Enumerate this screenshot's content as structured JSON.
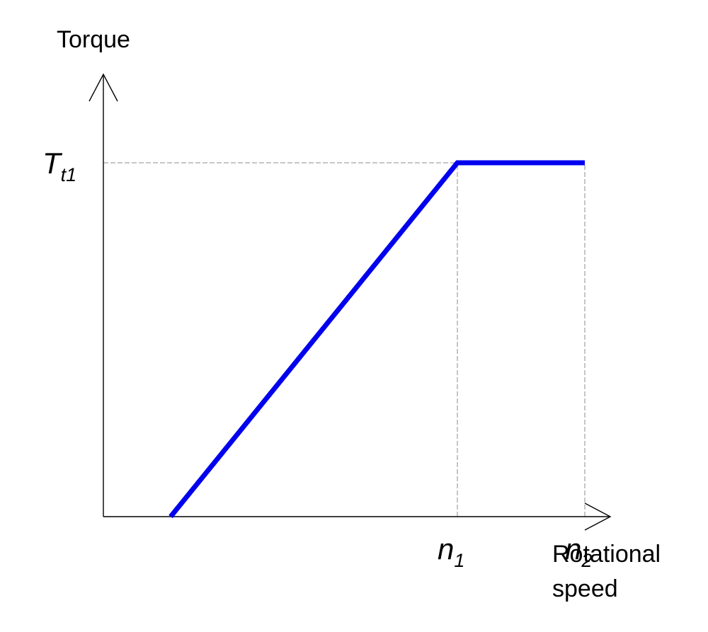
{
  "chart_data": {
    "type": "line",
    "ylabel": "Torque",
    "xlabel_lines": [
      "Rotational",
      "speed"
    ],
    "x_ticks": [
      {
        "base": "n",
        "sub": "1",
        "value": 500
      },
      {
        "base": "n",
        "sub": "2",
        "value": 680
      }
    ],
    "y_ticks": [
      {
        "base": "T",
        "sub": "t1",
        "value": 500
      }
    ],
    "xlim": [
      0,
      720
    ],
    "ylim": [
      0,
      640
    ],
    "series": [
      {
        "color": "#0000ee",
        "points": [
          {
            "x": 95,
            "y": 0
          },
          {
            "x": 500,
            "y": 500
          },
          {
            "x": 680,
            "y": 500
          }
        ]
      }
    ],
    "guides": [
      {
        "from": [
          0,
          500
        ],
        "to": [
          500,
          500
        ]
      },
      {
        "from": [
          500,
          0
        ],
        "to": [
          500,
          500
        ]
      },
      {
        "from": [
          680,
          0
        ],
        "to": [
          680,
          500
        ]
      }
    ],
    "grid": false,
    "legend": "none"
  },
  "colors": {
    "axis": "#000000",
    "guide": "#8c8c8c",
    "curve": "#0000ee"
  }
}
